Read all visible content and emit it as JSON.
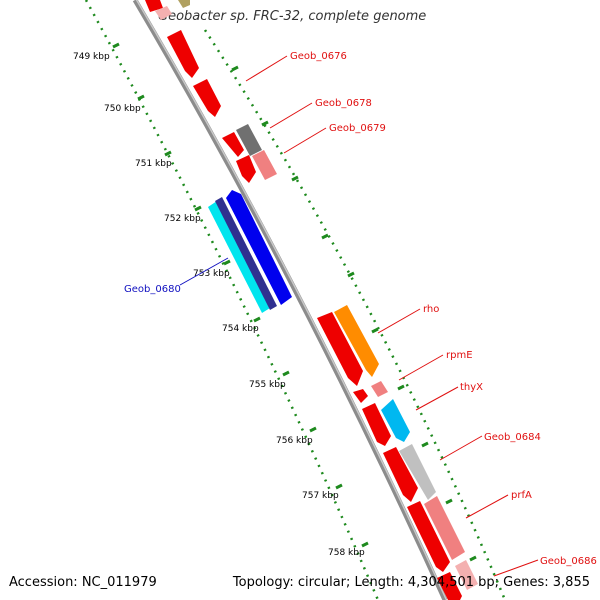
{
  "header": {
    "title": "Geobacter sp. FRC-32, complete genome"
  },
  "footer": {
    "accession": "Accession: NC_011979",
    "topology": "Topology: circular; Length: 4,304,501 bp; Genes: 3,855"
  },
  "ticks": [
    "749 kbp",
    "750 kbp",
    "751 kbp",
    "752 kbp",
    "753 kbp",
    "754 kbp",
    "755 kbp",
    "756 kbp",
    "757 kbp",
    "758 kbp"
  ],
  "gene_labels": [
    {
      "name": "Geob_0676",
      "color": "#e01010"
    },
    {
      "name": "Geob_0678",
      "color": "#e01010"
    },
    {
      "name": "Geob_0679",
      "color": "#e01010"
    },
    {
      "name": "Geob_0680",
      "color": "#1010c0"
    },
    {
      "name": "rho",
      "color": "#e01010"
    },
    {
      "name": "rpmE",
      "color": "#e01010"
    },
    {
      "name": "thyX",
      "color": "#e01010"
    },
    {
      "name": "Geob_0684",
      "color": "#e01010"
    },
    {
      "name": "prfA",
      "color": "#e01010"
    },
    {
      "name": "Geob_0686",
      "color": "#e01010"
    }
  ],
  "colors": {
    "backbone": "#8c8c8c",
    "tick_green": "#1e8a1e",
    "forward_red": "#ee0000",
    "pink": "#f08080",
    "blue": "#0000ee",
    "cyan": "#00e5ee",
    "orange": "#ff8c00",
    "gray": "#c0c0c0"
  }
}
